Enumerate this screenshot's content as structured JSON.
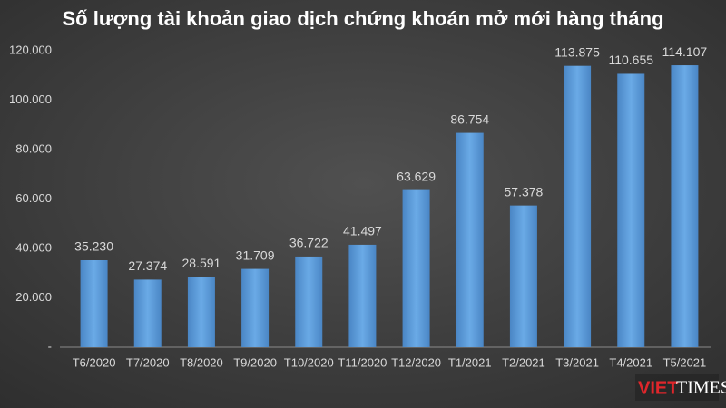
{
  "chart_data": {
    "type": "bar",
    "title": "Số lượng tài khoản giao dịch chứng khoán mở mới hàng tháng",
    "categories": [
      "T6/2020",
      "T7/2020",
      "T8/2020",
      "T9/2020",
      "T10/2020",
      "T11/2020",
      "T12/2020",
      "T1/2021",
      "T2/2021",
      "T3/2021",
      "T4/2021",
      "T5/2021"
    ],
    "values": [
      35230,
      27374,
      28591,
      31709,
      36722,
      41497,
      63629,
      86754,
      57378,
      113875,
      110655,
      114107
    ],
    "value_labels": [
      "35.230",
      "27.374",
      "28.591",
      "31.709",
      "36.722",
      "41.497",
      "63.629",
      "86.754",
      "57.378",
      "113.875",
      "110.655",
      "114.107"
    ],
    "color": "#5b9bd5",
    "ylim": [
      0,
      120000
    ],
    "yticks": [
      {
        "value": 0,
        "label": "-"
      },
      {
        "value": 20000,
        "label": "20.000"
      },
      {
        "value": 40000,
        "label": "40.000"
      },
      {
        "value": 60000,
        "label": "60.000"
      },
      {
        "value": 80000,
        "label": "80.000"
      },
      {
        "value": 100000,
        "label": "100.000"
      },
      {
        "value": 120000,
        "label": "120.000"
      }
    ],
    "grid": false,
    "logo": [
      "VIET",
      "TIMES"
    ]
  }
}
